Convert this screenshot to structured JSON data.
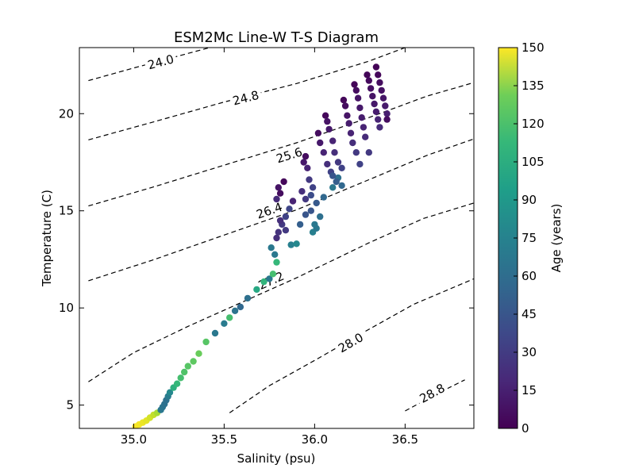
{
  "chart_data": {
    "type": "scatter",
    "title": "ESM2Mc Line-W T-S Diagram",
    "xlabel": "Salinity (psu)",
    "ylabel": "Temperature (C)",
    "xlim": [
      34.7,
      36.88
    ],
    "ylim": [
      3.8,
      23.4
    ],
    "xticks": [
      {
        "value": 35.0,
        "label": "35.0"
      },
      {
        "value": 35.5,
        "label": "35.5"
      },
      {
        "value": 36.0,
        "label": "36.0"
      },
      {
        "value": 36.5,
        "label": "36.5"
      }
    ],
    "yticks": [
      {
        "value": 5,
        "label": "5"
      },
      {
        "value": 10,
        "label": "10"
      },
      {
        "value": 15,
        "label": "15"
      },
      {
        "value": 20,
        "label": "20"
      }
    ],
    "colorbar": {
      "label": "Age (years)",
      "min": 0,
      "max": 150,
      "colormap": "viridis",
      "ticks": [
        {
          "value": 0,
          "label": "0"
        },
        {
          "value": 15,
          "label": "15"
        },
        {
          "value": 30,
          "label": "30"
        },
        {
          "value": 45,
          "label": "45"
        },
        {
          "value": 60,
          "label": "60"
        },
        {
          "value": 75,
          "label": "75"
        },
        {
          "value": 90,
          "label": "90"
        },
        {
          "value": 105,
          "label": "105"
        },
        {
          "value": 120,
          "label": "120"
        },
        {
          "value": 135,
          "label": "135"
        },
        {
          "value": 150,
          "label": "150"
        }
      ]
    },
    "contours": [
      {
        "label": "24.0",
        "points": [
          [
            34.75,
            21.7
          ],
          [
            35.0,
            22.35
          ],
          [
            35.2,
            22.85
          ],
          [
            35.42,
            23.4
          ]
        ],
        "label_at": [
          35.15,
          22.65
        ]
      },
      {
        "label": "24.8",
        "points": [
          [
            34.75,
            18.65
          ],
          [
            35.1,
            19.55
          ],
          [
            35.5,
            20.6
          ],
          [
            35.9,
            21.55
          ],
          [
            36.3,
            22.7
          ],
          [
            36.5,
            23.4
          ]
        ],
        "label_at": [
          35.62,
          20.8
        ]
      },
      {
        "label": "25.6",
        "points": [
          [
            34.75,
            15.25
          ],
          [
            35.1,
            16.2
          ],
          [
            35.5,
            17.35
          ],
          [
            35.9,
            18.5
          ],
          [
            36.3,
            19.8
          ],
          [
            36.62,
            20.9
          ],
          [
            36.88,
            21.6
          ]
        ],
        "label_at": [
          35.86,
          17.85
        ]
      },
      {
        "label": "26.4",
        "points": [
          [
            34.75,
            11.4
          ],
          [
            35.1,
            12.45
          ],
          [
            35.5,
            13.75
          ],
          [
            35.9,
            15.05
          ],
          [
            36.3,
            16.6
          ],
          [
            36.62,
            17.85
          ],
          [
            36.88,
            18.7
          ]
        ],
        "label_at": [
          35.75,
          15.0
        ]
      },
      {
        "label": "27.2",
        "points": [
          [
            34.75,
            6.2
          ],
          [
            35.0,
            7.7
          ],
          [
            35.3,
            9.05
          ],
          [
            35.6,
            10.3
          ],
          [
            35.9,
            11.55
          ],
          [
            36.3,
            13.35
          ],
          [
            36.6,
            14.6
          ],
          [
            36.88,
            15.4
          ]
        ],
        "label_at": [
          35.76,
          11.4
        ]
      },
      {
        "label": "28.0",
        "points": [
          [
            35.53,
            4.6
          ],
          [
            35.75,
            6.0
          ],
          [
            36.0,
            7.3
          ],
          [
            36.3,
            8.9
          ],
          [
            36.55,
            10.2
          ],
          [
            36.88,
            11.5
          ]
        ],
        "label_at": [
          36.2,
          8.2
        ]
      },
      {
        "label": "28.8",
        "points": [
          [
            36.5,
            4.7
          ],
          [
            36.68,
            5.6
          ],
          [
            36.83,
            6.3
          ]
        ],
        "label_at": [
          36.65,
          5.6
        ]
      }
    ],
    "points": [
      [
        35.01,
        3.9,
        150
      ],
      [
        35.03,
        4.0,
        148
      ],
      [
        35.05,
        4.1,
        146
      ],
      [
        35.07,
        4.2,
        144
      ],
      [
        35.09,
        4.35,
        140
      ],
      [
        35.11,
        4.5,
        136
      ],
      [
        35.13,
        4.6,
        130
      ],
      [
        35.15,
        4.75,
        60
      ],
      [
        35.16,
        4.9,
        58
      ],
      [
        35.17,
        5.05,
        56
      ],
      [
        35.18,
        5.25,
        55
      ],
      [
        35.19,
        5.45,
        62
      ],
      [
        35.2,
        5.65,
        70
      ],
      [
        35.22,
        5.9,
        95
      ],
      [
        35.24,
        6.1,
        100
      ],
      [
        35.26,
        6.4,
        105
      ],
      [
        35.28,
        6.7,
        108
      ],
      [
        35.3,
        7.0,
        110
      ],
      [
        35.33,
        7.25,
        112
      ],
      [
        35.36,
        7.65,
        115
      ],
      [
        35.4,
        8.25,
        110
      ],
      [
        35.45,
        8.7,
        60
      ],
      [
        35.5,
        9.2,
        62
      ],
      [
        35.53,
        9.5,
        105
      ],
      [
        35.56,
        9.85,
        58
      ],
      [
        35.59,
        10.05,
        50
      ],
      [
        35.63,
        10.5,
        55
      ],
      [
        35.68,
        10.95,
        90
      ],
      [
        35.72,
        11.35,
        98
      ],
      [
        35.75,
        11.5,
        60
      ],
      [
        35.77,
        11.75,
        105
      ],
      [
        35.79,
        12.35,
        100
      ],
      [
        35.78,
        12.75,
        60
      ],
      [
        35.76,
        13.1,
        60
      ],
      [
        35.79,
        13.6,
        20
      ],
      [
        35.8,
        13.9,
        22
      ],
      [
        35.82,
        14.3,
        25
      ],
      [
        35.84,
        14.7,
        30
      ],
      [
        35.86,
        15.1,
        32
      ],
      [
        35.88,
        15.5,
        15
      ],
      [
        35.79,
        15.6,
        18
      ],
      [
        35.81,
        15.9,
        5
      ],
      [
        35.8,
        16.2,
        8
      ],
      [
        35.83,
        16.5,
        3
      ],
      [
        35.81,
        14.5,
        20
      ],
      [
        35.84,
        14.0,
        25
      ],
      [
        35.87,
        13.25,
        65
      ],
      [
        35.9,
        13.3,
        70
      ],
      [
        35.92,
        14.3,
        45
      ],
      [
        35.95,
        14.8,
        40
      ],
      [
        35.98,
        15.0,
        40
      ],
      [
        36.01,
        15.4,
        42
      ],
      [
        36.05,
        15.7,
        50
      ],
      [
        36.1,
        16.2,
        60
      ],
      [
        36.13,
        16.7,
        55
      ],
      [
        36.15,
        16.3,
        50
      ],
      [
        35.94,
        17.5,
        10
      ],
      [
        35.95,
        17.8,
        5
      ],
      [
        35.96,
        17.2,
        15
      ],
      [
        35.97,
        16.6,
        25
      ],
      [
        35.99,
        16.2,
        30
      ],
      [
        35.93,
        16.0,
        20
      ],
      [
        35.95,
        15.6,
        25
      ],
      [
        35.98,
        15.8,
        35
      ],
      [
        36.03,
        14.7,
        55
      ],
      [
        36.0,
        14.3,
        60
      ],
      [
        35.99,
        13.9,
        65
      ],
      [
        36.01,
        14.1,
        60
      ],
      [
        36.02,
        19.0,
        5
      ],
      [
        36.03,
        18.5,
        10
      ],
      [
        36.05,
        18.0,
        15
      ],
      [
        36.07,
        17.4,
        20
      ],
      [
        36.09,
        17.0,
        30
      ],
      [
        36.1,
        16.8,
        40
      ],
      [
        36.12,
        16.5,
        45
      ],
      [
        36.06,
        19.9,
        3
      ],
      [
        36.07,
        19.6,
        8
      ],
      [
        36.08,
        19.2,
        10
      ],
      [
        36.1,
        18.6,
        15
      ],
      [
        36.11,
        18.0,
        20
      ],
      [
        36.13,
        17.5,
        25
      ],
      [
        36.15,
        17.2,
        30
      ],
      [
        36.16,
        20.7,
        3
      ],
      [
        36.17,
        20.4,
        5
      ],
      [
        36.18,
        19.9,
        8
      ],
      [
        36.19,
        19.5,
        12
      ],
      [
        36.2,
        19.0,
        15
      ],
      [
        36.21,
        18.5,
        20
      ],
      [
        36.23,
        18.0,
        25
      ],
      [
        36.25,
        17.4,
        30
      ],
      [
        36.22,
        21.5,
        2
      ],
      [
        36.23,
        21.2,
        5
      ],
      [
        36.24,
        20.8,
        8
      ],
      [
        36.25,
        20.3,
        10
      ],
      [
        36.26,
        19.8,
        12
      ],
      [
        36.27,
        19.3,
        15
      ],
      [
        36.28,
        18.8,
        18
      ],
      [
        36.3,
        18.0,
        25
      ],
      [
        36.29,
        22.0,
        2
      ],
      [
        36.3,
        21.7,
        4
      ],
      [
        36.31,
        21.3,
        6
      ],
      [
        36.32,
        20.9,
        8
      ],
      [
        36.33,
        20.5,
        10
      ],
      [
        36.34,
        20.1,
        12
      ],
      [
        36.35,
        19.7,
        15
      ],
      [
        36.36,
        19.3,
        18
      ],
      [
        36.34,
        22.4,
        1
      ],
      [
        36.35,
        22.0,
        3
      ],
      [
        36.36,
        21.6,
        5
      ],
      [
        36.37,
        21.2,
        7
      ],
      [
        36.38,
        20.8,
        9
      ],
      [
        36.39,
        20.4,
        11
      ],
      [
        36.4,
        20.0,
        13
      ],
      [
        36.4,
        19.7,
        5
      ]
    ]
  }
}
